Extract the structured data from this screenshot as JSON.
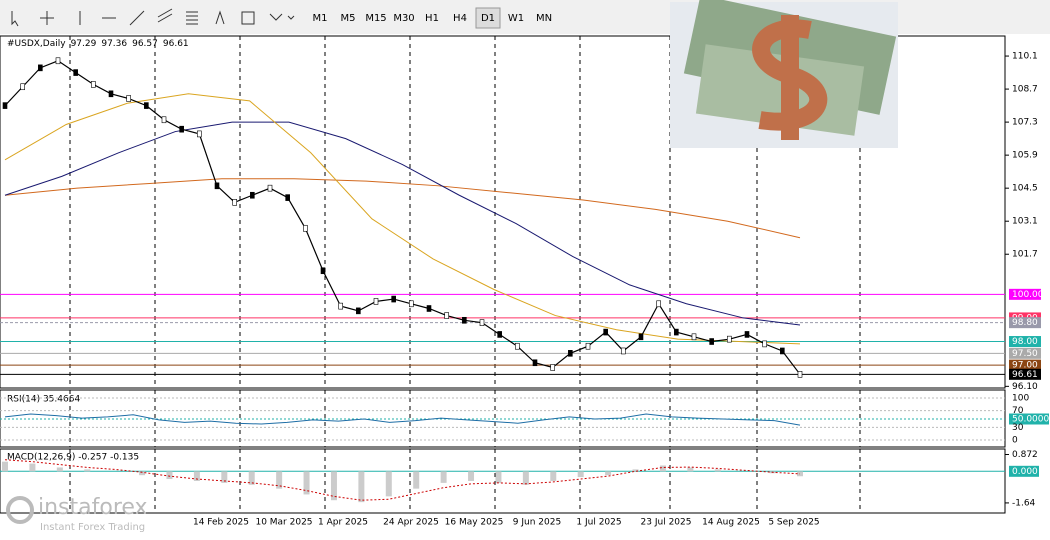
{
  "toolbar": {
    "timeframes": [
      "M1",
      "M5",
      "M15",
      "M30",
      "H1",
      "H4",
      "D1",
      "W1",
      "MN"
    ],
    "active": "D1"
  },
  "chart": {
    "symbol": "#USDX,Daily",
    "ohlc": [
      "97.29",
      "97.36",
      "96.57",
      "96.61"
    ],
    "ylim": [
      96.03,
      110.95
    ],
    "yticks": [
      110.1,
      108.7,
      107.3,
      105.9,
      104.5,
      103.1,
      101.7,
      {
        "value": 96.1,
        "label": "96.10"
      }
    ],
    "levels": [
      {
        "value": 100.0,
        "label": "100.00",
        "color": "#ff00ff"
      },
      {
        "value": 99.0,
        "label": "99.00",
        "color": "#ff3366"
      },
      {
        "value": 98.8,
        "label": "98.80",
        "color": "#9999aa"
      },
      {
        "value": 98.0,
        "label": "98.00",
        "color": "#20b2aa"
      },
      {
        "value": 97.5,
        "label": "97.50",
        "color": "#aaaaaa"
      },
      {
        "value": 97.0,
        "label": "97.00",
        "color": "#8b4513"
      },
      {
        "value": 96.61,
        "label": "96.61",
        "color": "#000000"
      }
    ],
    "dates": [
      "14 Feb 2025",
      "10 Mar 2025",
      "1 Apr 2025",
      "24 Apr 2025",
      "16 May 2025",
      "9 Jun 2025",
      "1 Jul 2025",
      "23 Jul 2025",
      "14 Aug 2025",
      "5 Sep 2025"
    ],
    "closes": [
      108.0,
      108.8,
      109.6,
      109.9,
      109.4,
      108.9,
      108.5,
      108.3,
      108.0,
      107.4,
      107.0,
      106.8,
      104.6,
      103.9,
      104.2,
      104.5,
      104.1,
      102.8,
      101.0,
      99.5,
      99.3,
      99.7,
      99.8,
      99.6,
      99.4,
      99.1,
      98.9,
      98.8,
      98.3,
      97.8,
      97.1,
      96.9,
      97.5,
      97.8,
      98.4,
      97.6,
      98.2,
      99.6,
      98.4,
      98.2,
      98.0,
      98.1,
      98.3,
      97.9,
      97.6,
      96.61
    ],
    "ma_lines": [
      {
        "color": "#d2691e",
        "values": [
          104.2,
          104.5,
          104.7,
          104.9,
          104.9,
          104.8,
          104.6,
          104.3,
          104.0,
          103.6,
          103.1,
          102.4
        ]
      },
      {
        "color": "#191970",
        "values": [
          104.2,
          105.0,
          106.0,
          106.9,
          107.3,
          107.3,
          106.6,
          105.5,
          104.2,
          103.0,
          101.6,
          100.4,
          99.6,
          99.0,
          98.7
        ]
      },
      {
        "color": "#daa520",
        "values": [
          105.7,
          107.2,
          108.1,
          108.5,
          108.2,
          106.0,
          103.2,
          101.5,
          100.2,
          99.1,
          98.5,
          98.1,
          98.0,
          97.9
        ]
      }
    ]
  },
  "rsi": {
    "label": "RSI(14) 35.4664",
    "ylim": [
      0,
      100
    ],
    "yticks": [
      100,
      70,
      {
        "value": 50,
        "label": "50.0000"
      },
      30,
      0
    ],
    "values": [
      55,
      62,
      58,
      52,
      55,
      60,
      48,
      42,
      45,
      40,
      38,
      42,
      48,
      45,
      50,
      42,
      46,
      52,
      48,
      44,
      40,
      48,
      55,
      50,
      52,
      62,
      55,
      52,
      50,
      48,
      46,
      35.4664
    ]
  },
  "macd": {
    "label": "MACD(12,26,9) -0.257 -0.135",
    "ylim": [
      -1.8,
      0.95
    ],
    "yticks": [
      0.872,
      {
        "value": 0,
        "label": "0.000"
      },
      -1.64
    ],
    "histogram": [
      0.5,
      0.4,
      0.2,
      0.1,
      0.0,
      -0.2,
      -0.4,
      -0.5,
      -0.6,
      -0.7,
      -0.9,
      -1.2,
      -1.5,
      -1.6,
      -1.3,
      -0.9,
      -0.6,
      -0.5,
      -0.6,
      -0.7,
      -0.5,
      -0.3,
      -0.2,
      0.1,
      0.3,
      0.2,
      0.1,
      0.0,
      -0.1,
      -0.257
    ],
    "signal": [
      0.6,
      0.5,
      0.35,
      0.2,
      0.1,
      -0.05,
      -0.25,
      -0.4,
      -0.5,
      -0.6,
      -0.75,
      -1.0,
      -1.3,
      -1.5,
      -1.45,
      -1.15,
      -0.85,
      -0.65,
      -0.6,
      -0.65,
      -0.55,
      -0.4,
      -0.25,
      0.0,
      0.2,
      0.22,
      0.15,
      0.05,
      -0.05,
      -0.135
    ]
  },
  "watermark": {
    "brand": "instaforex",
    "tagline": "Instant Forex Trading"
  }
}
